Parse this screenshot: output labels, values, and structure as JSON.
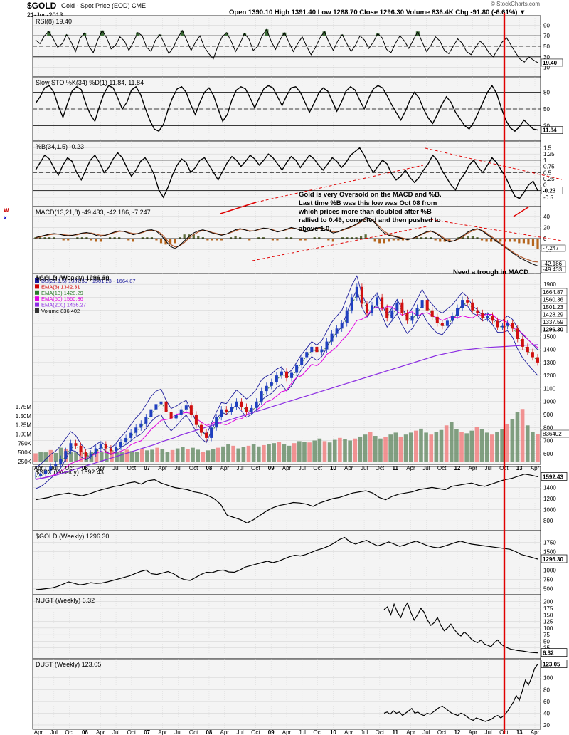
{
  "header": {
    "symbol": "$GOLD",
    "description": "Gold - Spot Price (EOD)  CME",
    "date": "21-Jun-2013",
    "quote": "Open 1390.10  High 1391.40  Low 1268.70  Close 1296.30  Volume 836.4K  Chg -91.80 (-6.61%) ▼",
    "copyright": "© StockCharts.com"
  },
  "annotations": {
    "oversold_note": "Gold is very Oversold on the MACD and %B. Last time %B was this low was Oct 08 from which prices more than doubled after %B rallied to 0.49, corrected and then pushed to above 1.0.",
    "trough_note": "Need a trough in MACD",
    "side_mark_1": "W",
    "side_mark_2": "x"
  },
  "colors": {
    "panel_bg": "#f4f4f4",
    "price_panel_bg": "#f4f4f4",
    "grid": "#cfcfcf",
    "line": "#000000",
    "rsi_fill": "#3a6b35",
    "vertical_marker": "#e00000",
    "trend_dashed": "#e00000",
    "bb": "#1c1c9c",
    "ema3": "#d00000",
    "ema13": "#2a7a2a",
    "ema50": "#e000e0",
    "ema200": "#8a2be2",
    "macd_line": "#000000",
    "macd_signal": "#b05a30",
    "hist": "#5d6b3a",
    "vol_up": "#6b8e6b",
    "vol_down": "#f08080",
    "candle_up": "#1f3fbf",
    "candle_down": "#d01010"
  },
  "chart_data": [
    {
      "type": "line",
      "name": "rsi",
      "title": "RSI(8) 19.40",
      "ylim": [
        0,
        100
      ],
      "ticks": [
        90,
        70,
        50,
        30,
        10
      ],
      "guides": [
        70,
        50,
        30
      ],
      "last_label": "19.40",
      "values": [
        62,
        55,
        70,
        78,
        64,
        48,
        55,
        72,
        58,
        40,
        65,
        75,
        50,
        38,
        62,
        80,
        66,
        45,
        52,
        68,
        60,
        42,
        58,
        76,
        70,
        48,
        40,
        62,
        72,
        55,
        36,
        48,
        66,
        80,
        62,
        42,
        58,
        70,
        48,
        36,
        26,
        50,
        68,
        76,
        60,
        40,
        55,
        74,
        64,
        42,
        50,
        70,
        82,
        60,
        44,
        62,
        76,
        58,
        40,
        55,
        68,
        50,
        34,
        48,
        66,
        78,
        58,
        42,
        60,
        72,
        56,
        40,
        52,
        70,
        62,
        46,
        58,
        74,
        66,
        44,
        38,
        56,
        70,
        60,
        46,
        62,
        78,
        58,
        40,
        52,
        68,
        60,
        42,
        36,
        50,
        64,
        56,
        40,
        34,
        48,
        60,
        52,
        38,
        30,
        44,
        58,
        66,
        52,
        38,
        26,
        20,
        30,
        24,
        19
      ]
    },
    {
      "type": "line",
      "name": "sto",
      "title": "Slow STO %K(34) %D(1) 11.84, 11.84",
      "ylim": [
        0,
        100
      ],
      "ticks": [
        80,
        50,
        20
      ],
      "guides": [
        80,
        50,
        20
      ],
      "last_label": "11.84",
      "values": [
        60,
        72,
        88,
        92,
        80,
        55,
        35,
        60,
        82,
        90,
        85,
        60,
        40,
        28,
        55,
        78,
        92,
        88,
        70,
        50,
        62,
        84,
        90,
        76,
        52,
        30,
        14,
        10,
        22,
        48,
        70,
        86,
        90,
        80,
        58,
        40,
        62,
        80,
        88,
        74,
        50,
        28,
        40,
        66,
        84,
        90,
        86,
        70,
        52,
        70,
        86,
        92,
        88,
        72,
        56,
        74,
        88,
        90,
        80,
        62,
        44,
        60,
        78,
        88,
        82,
        64,
        46,
        62,
        82,
        90,
        84,
        66,
        50,
        70,
        86,
        92,
        88,
        74,
        58,
        44,
        30,
        46,
        66,
        80,
        70,
        50,
        34,
        24,
        40,
        58,
        72,
        62,
        44,
        32,
        20,
        14,
        26,
        44,
        62,
        80,
        92,
        78,
        52,
        30,
        16,
        10,
        18,
        30,
        22,
        14,
        12
      ]
    },
    {
      "type": "line",
      "name": "pctb",
      "title": "%B(34,1.5) -0.23",
      "ylim": [
        -0.7,
        1.6
      ],
      "ticks": [
        1.5,
        1.25,
        1.0,
        0.75,
        0.5,
        0.25,
        0.0,
        -0.25,
        -0.5
      ],
      "guides": [
        1.0,
        0.5,
        -0.23
      ],
      "last_label": "-0.23",
      "values": [
        0.6,
        0.9,
        1.2,
        1.05,
        0.7,
        0.4,
        0.8,
        1.1,
        0.95,
        0.5,
        0.2,
        0.6,
        1.0,
        1.2,
        0.9,
        0.5,
        0.7,
        1.05,
        1.3,
        1.1,
        0.7,
        0.35,
        0.6,
        0.95,
        1.1,
        0.8,
        0.4,
        -0.2,
        -0.5,
        -0.1,
        0.4,
        0.8,
        1.05,
        0.9,
        0.5,
        0.7,
        1.0,
        1.1,
        0.8,
        0.5,
        0.2,
        0.55,
        0.9,
        1.15,
        1.0,
        0.75,
        0.95,
        1.2,
        1.05,
        0.8,
        1.0,
        1.25,
        1.1,
        0.85,
        0.6,
        0.9,
        1.15,
        1.0,
        0.7,
        0.95,
        1.2,
        1.05,
        0.8,
        0.6,
        0.85,
        1.1,
        0.95,
        0.7,
        0.9,
        1.2,
        1.35,
        1.5,
        1.2,
        0.8,
        0.5,
        0.75,
        1.0,
        0.85,
        0.45,
        0.2,
        0.35,
        0.6,
        0.3,
        0.1,
        0.3,
        0.6,
        0.85,
        1.2,
        1.0,
        0.6,
        0.3,
        0.0,
        -0.2,
        0.2,
        0.45,
        0.8,
        1.0,
        0.7,
        0.5,
        0.8,
        1.1,
        0.9,
        0.6,
        0.3,
        -0.1,
        -0.45,
        -0.55,
        -0.3,
        0.0,
        0.15,
        -0.23
      ]
    },
    {
      "type": "line",
      "name": "macd",
      "title": "MACD(13,21,8) -49.433, -42.186, -7.247",
      "ylim": [
        -55,
        50
      ],
      "ticks": [
        40,
        20,
        0,
        -20
      ],
      "last_labels": [
        "-7.247",
        "-42.186",
        "-49.433"
      ],
      "macd": [
        2,
        4,
        6,
        8,
        9,
        8,
        6,
        5,
        6,
        8,
        10,
        11,
        9,
        6,
        4,
        6,
        9,
        12,
        14,
        13,
        10,
        7,
        9,
        12,
        15,
        16,
        13,
        6,
        -4,
        -14,
        -18,
        -12,
        -4,
        4,
        10,
        14,
        16,
        13,
        10,
        8,
        6,
        8,
        12,
        16,
        18,
        16,
        13,
        14,
        17,
        19,
        18,
        15,
        12,
        14,
        17,
        20,
        18,
        15,
        12,
        14,
        18,
        20,
        18,
        14,
        10,
        12,
        16,
        19,
        22,
        26,
        32,
        38,
        36,
        28,
        18,
        10,
        6,
        4,
        2,
        0,
        -2,
        0,
        4,
        8,
        12,
        14,
        10,
        4,
        -2,
        -6,
        -4,
        0,
        6,
        12,
        16,
        18,
        14,
        8,
        2,
        -4,
        -10,
        -16,
        -22,
        -28,
        -34,
        -38,
        -42,
        -46,
        -49
      ],
      "signal": [
        1,
        3,
        5,
        7,
        8,
        8,
        7,
        6,
        6,
        7,
        9,
        10,
        10,
        8,
        6,
        6,
        8,
        11,
        13,
        13,
        11,
        9,
        9,
        11,
        14,
        15,
        14,
        9,
        0,
        -10,
        -15,
        -13,
        -7,
        1,
        7,
        12,
        15,
        14,
        11,
        9,
        7,
        8,
        11,
        14,
        17,
        16,
        14,
        14,
        16,
        18,
        18,
        16,
        13,
        14,
        16,
        19,
        18,
        16,
        13,
        14,
        17,
        19,
        18,
        15,
        12,
        12,
        15,
        18,
        21,
        25,
        30,
        35,
        36,
        30,
        21,
        13,
        8,
        5,
        3,
        1,
        -1,
        0,
        3,
        7,
        11,
        13,
        11,
        6,
        0,
        -4,
        -4,
        -1,
        4,
        10,
        14,
        17,
        15,
        10,
        4,
        -2,
        -8,
        -14,
        -20,
        -26,
        -31,
        -35,
        -38,
        -41,
        -42
      ]
    },
    {
      "type": "candlestick",
      "name": "gold_price",
      "title": "$GOLD (Weekly) 1296.30",
      "ylim": [
        550,
        1950
      ],
      "ticks": [
        1900,
        1800,
        1700,
        1600,
        1500,
        1400,
        1300,
        1200,
        1100,
        1000,
        900,
        800,
        700,
        600
      ],
      "legend": [
        {
          "name": "BB(21,1.5) 1337.59 - 1501.23 - 1664.87",
          "color": "#1c1c9c"
        },
        {
          "name": "EMA(3) 1342.31",
          "color": "#d00000"
        },
        {
          "name": "EMA(13) 1428.29",
          "color": "#2a7a2a"
        },
        {
          "name": "EMA(50) 1560.36",
          "color": "#e000e0"
        },
        {
          "name": "EMA(200) 1436.27",
          "color": "#8a2be2"
        },
        {
          "name": "Volume 836,402",
          "color": "#333333"
        }
      ],
      "right_labels": [
        "1664.87",
        "1560.36",
        "1501.23",
        "1428.29",
        "1337.59",
        "1296.30"
      ],
      "close": [
        430,
        445,
        470,
        500,
        520,
        560,
        620,
        680,
        660,
        610,
        580,
        600,
        640,
        670,
        640,
        620,
        650,
        690,
        720,
        760,
        800,
        830,
        880,
        940,
        980,
        1000,
        920,
        870,
        900,
        940,
        970,
        900,
        820,
        760,
        720,
        800,
        880,
        940,
        920,
        960,
        1000,
        960,
        920,
        950,
        1000,
        1080,
        1120,
        1150,
        1200,
        1230,
        1180,
        1220,
        1280,
        1340,
        1380,
        1420,
        1380,
        1400,
        1460,
        1520,
        1560,
        1600,
        1700,
        1800,
        1880,
        1750,
        1680,
        1740,
        1800,
        1720,
        1640,
        1700,
        1760,
        1680,
        1620,
        1660,
        1720,
        1780,
        1700,
        1650,
        1600,
        1580,
        1620,
        1660,
        1720,
        1780,
        1760,
        1700,
        1680,
        1640,
        1660,
        1620,
        1570,
        1580,
        1600,
        1560,
        1480,
        1420,
        1380,
        1340,
        1300
      ],
      "ema200": [
        400,
        410,
        420,
        430,
        445,
        460,
        475,
        490,
        505,
        520,
        535,
        550,
        565,
        580,
        595,
        610,
        625,
        640,
        655,
        670,
        690,
        705,
        720,
        740,
        755,
        770,
        785,
        800,
        815,
        830,
        845,
        860,
        875,
        890,
        905,
        920,
        935,
        950,
        965,
        980,
        995,
        1010,
        1025,
        1040,
        1055,
        1070,
        1085,
        1100,
        1115,
        1130,
        1145,
        1160,
        1175,
        1190,
        1205,
        1220,
        1235,
        1250,
        1265,
        1280,
        1295,
        1310,
        1325,
        1340,
        1355,
        1365,
        1375,
        1385,
        1395,
        1400,
        1405,
        1410,
        1415,
        1418,
        1420,
        1423,
        1426,
        1429,
        1432,
        1434,
        1436
      ]
    },
    {
      "type": "bar",
      "name": "volume",
      "ticks_labels": [
        "1.75M",
        "1.50M",
        "1.25M",
        "1.00M",
        "750K",
        "500K",
        "250K"
      ],
      "ylim": [
        0,
        1800
      ],
      "last_label": "836402",
      "values": [
        250,
        300,
        280,
        350,
        260,
        420,
        380,
        300,
        280,
        320,
        260,
        300,
        350,
        280,
        310,
        330,
        300,
        280,
        360,
        320,
        300,
        380,
        340,
        360,
        420,
        380,
        300,
        350,
        400,
        450,
        380,
        420,
        360,
        300,
        340,
        380,
        420,
        460,
        520,
        480,
        400,
        440,
        480,
        520,
        460,
        500,
        540,
        560,
        600,
        520,
        480,
        560,
        620,
        600,
        580,
        640,
        700,
        620,
        580,
        660,
        720,
        680,
        640,
        700,
        760,
        820,
        900,
        780,
        700,
        740,
        820,
        880,
        760,
        820,
        880,
        940,
        1000,
        880,
        820,
        900,
        960,
        1100,
        1200,
        980,
        900,
        860,
        940,
        1050,
        980,
        880,
        820,
        900,
        980,
        1150,
        1300,
        1500,
        1600,
        1100,
        900,
        836
      ]
    },
    {
      "type": "line",
      "name": "spx",
      "title": "$SPX (Weekly) 1592.43",
      "ylim": [
        700,
        1700
      ],
      "ticks": [
        1400,
        1200,
        1000,
        800
      ],
      "last_label": "1592.43",
      "values": [
        1180,
        1200,
        1220,
        1260,
        1280,
        1300,
        1270,
        1250,
        1280,
        1320,
        1360,
        1390,
        1420,
        1440,
        1480,
        1500,
        1460,
        1520,
        1540,
        1480,
        1440,
        1400,
        1380,
        1360,
        1320,
        1300,
        1260,
        1200,
        1100,
        900,
        860,
        820,
        760,
        820,
        900,
        980,
        1040,
        1080,
        1100,
        1130,
        1120,
        1100,
        1060,
        1120,
        1160,
        1200,
        1220,
        1260,
        1300,
        1320,
        1340,
        1300,
        1220,
        1180,
        1240,
        1280,
        1300,
        1320,
        1360,
        1380,
        1400,
        1380,
        1360,
        1420,
        1440,
        1460,
        1480,
        1440,
        1420,
        1460,
        1500,
        1540,
        1560,
        1600,
        1640,
        1620,
        1592
      ]
    },
    {
      "type": "line",
      "name": "gold_line",
      "title": "$GOLD (Weekly) 1296.30",
      "ylim": [
        450,
        1950
      ],
      "ticks": [
        1750,
        1500,
        1250,
        1000,
        750,
        500
      ],
      "last_label": "1296.30",
      "values": [
        470,
        480,
        500,
        520,
        560,
        620,
        680,
        640,
        600,
        620,
        660,
        640,
        650,
        680,
        720,
        760,
        800,
        840,
        900,
        960,
        1000,
        900,
        880,
        920,
        960,
        900,
        800,
        740,
        720,
        800,
        880,
        940,
        930,
        980,
        1000,
        950,
        940,
        1000,
        1080,
        1120,
        1160,
        1200,
        1240,
        1200,
        1240,
        1300,
        1360,
        1400,
        1380,
        1420,
        1480,
        1540,
        1580,
        1640,
        1720,
        1820,
        1880,
        1760,
        1700,
        1760,
        1800,
        1720,
        1650,
        1700,
        1760,
        1700,
        1640,
        1680,
        1740,
        1780,
        1720,
        1660,
        1620,
        1600,
        1640,
        1690,
        1740,
        1780,
        1740,
        1700,
        1680,
        1660,
        1640,
        1620,
        1600,
        1580,
        1560,
        1500,
        1420,
        1380,
        1340,
        1296
      ]
    },
    {
      "type": "line",
      "name": "nugt",
      "title": "NUGT (Weekly) 6.32",
      "ylim": [
        0,
        210
      ],
      "ticks": [
        200,
        175,
        150,
        125,
        100,
        75,
        50,
        25
      ],
      "last_label": "6.32",
      "values": [
        170,
        180,
        150,
        190,
        160,
        140,
        175,
        195,
        160,
        130,
        150,
        175,
        160,
        130,
        110,
        120,
        140,
        110,
        90,
        100,
        115,
        95,
        80,
        70,
        85,
        75,
        60,
        50,
        45,
        55,
        40,
        35,
        30,
        45,
        55,
        40,
        30,
        25,
        20,
        18,
        15,
        14,
        12,
        10,
        8,
        7,
        6.32
      ]
    },
    {
      "type": "line",
      "name": "dust",
      "title": "DUST (Weekly) 123.05",
      "ylim": [
        20,
        125
      ],
      "ticks": [
        100,
        80,
        60,
        40,
        20
      ],
      "last_label": "123.05",
      "values": [
        40,
        42,
        38,
        44,
        40,
        42,
        36,
        40,
        44,
        48,
        40,
        42,
        38,
        36,
        40,
        38,
        42,
        46,
        50,
        52,
        48,
        44,
        40,
        38,
        36,
        40,
        38,
        34,
        30,
        28,
        32,
        30,
        28,
        26,
        28,
        30,
        34,
        36,
        32,
        36,
        42,
        50,
        58,
        70,
        62,
        78,
        96,
        88,
        100,
        116,
        123.05
      ]
    }
  ],
  "xaxis": {
    "labels": [
      "Apr",
      "Jul",
      "Oct",
      "06",
      "Apr",
      "Jul",
      "Oct",
      "07",
      "Apr",
      "Jul",
      "Oct",
      "08",
      "Apr",
      "Jul",
      "Oct",
      "09",
      "Apr",
      "Jul",
      "Oct",
      "10",
      "Apr",
      "Jul",
      "Oct",
      "11",
      "Apr",
      "Jul",
      "Oct",
      "12",
      "Apr",
      "Jul",
      "Oct",
      "13",
      "Apr"
    ],
    "major": [
      "06",
      "07",
      "08",
      "09",
      "10",
      "11",
      "12",
      "13"
    ]
  }
}
